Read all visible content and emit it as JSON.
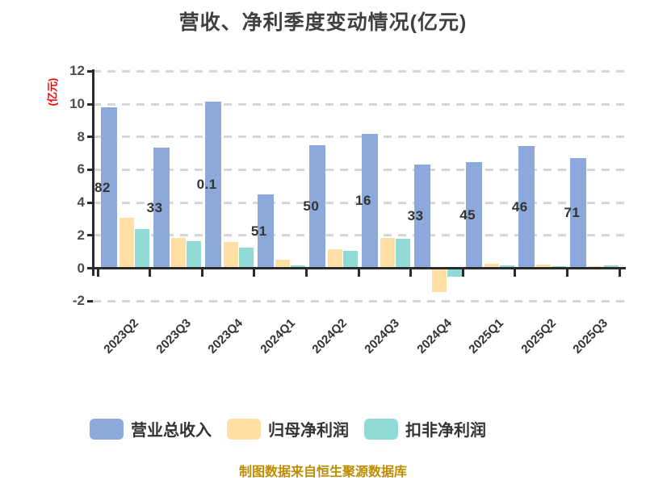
{
  "title": "营收、净利季度变动情况(亿元)",
  "y_axis_title": "(亿元)",
  "footer": "制图数据来自恒生聚源数据库",
  "colors": {
    "revenue": "#8ca9db",
    "net_profit": "#ffdfa3",
    "non_gaap_profit": "#90dbd6",
    "grid": "#d6d6d6",
    "axis": "#2a2a2a",
    "tick_label": "#4d4d4d",
    "title_text": "#404040",
    "footer_text": "#be8c00",
    "y_axis_title_text": "#ff0000"
  },
  "chart_data": {
    "type": "bar",
    "title": "营收、净利季度变动情况(亿元)",
    "ylabel": "(亿元)",
    "categories": [
      "2023Q2",
      "2023Q3",
      "2023Q4",
      "2024Q1",
      "2024Q2",
      "2024Q3",
      "2024Q4",
      "2025Q1",
      "2025Q2",
      "2025Q3"
    ],
    "series": [
      {
        "key": "revenue",
        "name": "营业总收入",
        "color": "#8ca9db",
        "values": [
          9.82,
          7.33,
          10.15,
          4.51,
          7.5,
          8.16,
          6.33,
          6.45,
          7.46,
          6.71
        ]
      },
      {
        "key": "net_profit",
        "name": "归母净利润",
        "color": "#ffdfa3",
        "values": [
          3.05,
          1.86,
          1.58,
          0.5,
          1.15,
          1.85,
          -1.45,
          0.28,
          0.2,
          0.12
        ]
      },
      {
        "key": "non_gaap_profit",
        "name": "扣非净利润",
        "color": "#90dbd6",
        "values": [
          2.4,
          1.67,
          1.24,
          0.15,
          1.05,
          1.8,
          -0.5,
          0.18,
          0.1,
          0.17
        ]
      }
    ],
    "bar_labels_visible": [
      "82",
      "33",
      "0.1",
      "51",
      "50",
      "16",
      "33",
      "45",
      "46",
      "71"
    ],
    "y_ticks": [
      12,
      10,
      8,
      6,
      4,
      2,
      0,
      -2
    ],
    "ylim": [
      -2.7,
      12
    ],
    "grid": "dashed-horizontal",
    "legend_position": "bottom"
  }
}
